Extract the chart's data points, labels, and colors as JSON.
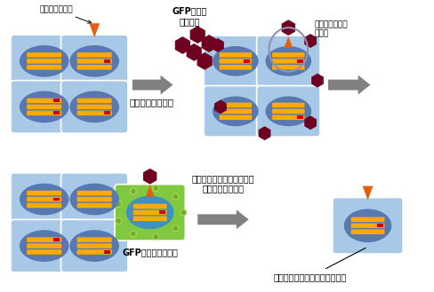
{
  "bg_color": "#ffffff",
  "cell_outer_color": "#a8c8e8",
  "cell_inner_color": "#5878b0",
  "chromosome_color": "#ffaa00",
  "red_mark_color": "#cc0000",
  "virus_color": "#700020",
  "receptor_color": "#e06010",
  "arrow_color": "#808080",
  "green_cell_color": "#80c840",
  "green_inner_color": "#4090c0",
  "circle_color": "#9090b0",
  "label_receptor": "ウイルス受容体",
  "label_gfp": "GFP組換え\nウイルス",
  "label_add_virus": "ウイルスをかける",
  "label_can_infect": "ウイルスが感染\nできる",
  "label_select": "ウイルスが感染するように\nなった細胞を選択",
  "label_gfp_glow": "GFPで蛍光を発する",
  "label_gene": "ヒト由来ウイルス受容体遺伝子",
  "figsize": [
    4.89,
    3.29
  ],
  "dpi": 100
}
